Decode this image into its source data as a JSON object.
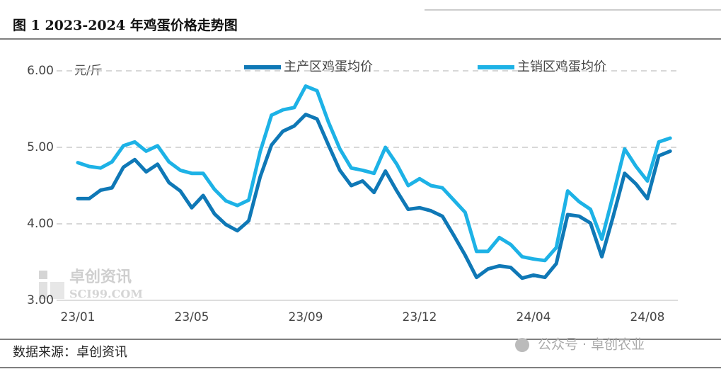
{
  "chart_data": {
    "type": "line",
    "title": "图 1 2023-2024 年鸡蛋价格走势图",
    "y_label": "元/斤",
    "categories": [
      "23/01",
      null,
      null,
      null,
      null,
      null,
      null,
      null,
      null,
      null,
      "23/05",
      null,
      null,
      null,
      null,
      null,
      null,
      null,
      null,
      null,
      "23/09",
      null,
      null,
      null,
      null,
      null,
      null,
      null,
      null,
      null,
      "23/12",
      null,
      null,
      null,
      null,
      null,
      null,
      null,
      null,
      null,
      "24/04",
      null,
      null,
      null,
      null,
      null,
      null,
      null,
      null,
      null,
      "24/08",
      null,
      null
    ],
    "series": [
      {
        "name": "主产区鸡蛋均价",
        "color": "#0f78b6",
        "values": [
          4.33,
          4.33,
          4.44,
          4.47,
          4.74,
          4.84,
          4.68,
          4.78,
          4.54,
          4.43,
          4.21,
          4.37,
          4.13,
          3.99,
          3.91,
          4.04,
          4.61,
          5.03,
          5.21,
          5.28,
          5.43,
          5.37,
          5.03,
          4.7,
          4.5,
          4.56,
          4.41,
          4.69,
          4.43,
          4.19,
          4.21,
          4.17,
          4.1,
          3.85,
          3.59,
          3.3,
          3.41,
          3.45,
          3.43,
          3.29,
          3.33,
          3.3,
          3.48,
          4.12,
          4.1,
          4.01,
          3.57,
          4.1,
          4.66,
          4.52,
          4.33,
          4.89,
          4.95
        ]
      },
      {
        "name": "主销区鸡蛋均价",
        "color": "#1db2e6",
        "values": [
          4.8,
          4.75,
          4.73,
          4.81,
          5.02,
          5.07,
          4.95,
          5.02,
          4.81,
          4.7,
          4.66,
          4.66,
          4.45,
          4.3,
          4.24,
          4.31,
          4.94,
          5.42,
          5.49,
          5.52,
          5.8,
          5.74,
          5.33,
          4.98,
          4.73,
          4.7,
          4.66,
          5.0,
          4.78,
          4.5,
          4.59,
          4.5,
          4.47,
          4.31,
          4.15,
          3.64,
          3.64,
          3.82,
          3.73,
          3.57,
          3.54,
          3.52,
          3.69,
          4.43,
          4.29,
          4.19,
          3.8,
          4.38,
          4.98,
          4.75,
          4.56,
          5.07,
          5.12
        ]
      }
    ],
    "ylim": [
      3,
      6
    ],
    "yticks": [
      {
        "value": 3,
        "label": "3.00"
      },
      {
        "value": 4,
        "label": "4.00"
      },
      {
        "value": 5,
        "label": "5.00"
      },
      {
        "value": 6,
        "label": "6.00"
      }
    ],
    "grid": true
  },
  "watermark": {
    "brand": "卓创资讯",
    "site": "SCI99.COM"
  },
  "footer": {
    "source": "数据来源：卓创资讯",
    "wechat": "公众号 · 卓创农业"
  }
}
